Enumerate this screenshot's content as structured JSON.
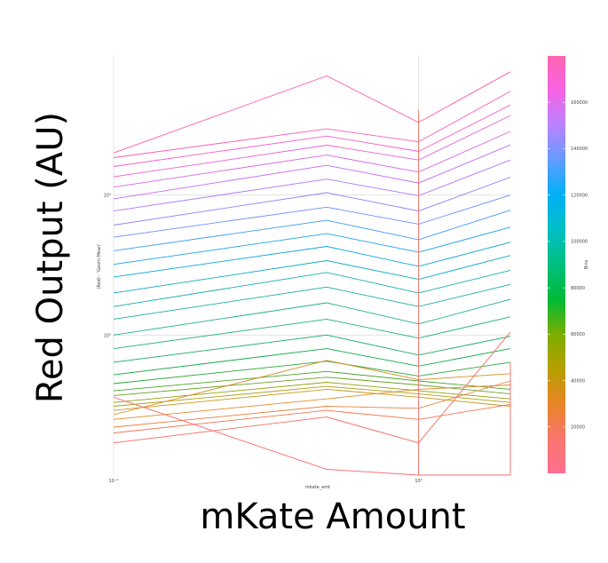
{
  "chart_data": {
    "type": "line",
    "title": "",
    "xlabel": "mKate Amount",
    "ylabel": "Red Output (AU)",
    "inner_xlabel": "mkate_amt",
    "inner_ylabel": "(Red) - 'Geom.Mean'",
    "x_scale": "log",
    "y_scale": "log",
    "x": [
      0.1,
      0.5,
      1,
      2
    ],
    "x_ticks": [
      {
        "value": 0.1,
        "label": "10⁻¹"
      },
      {
        "value": 1,
        "label": "10⁰"
      }
    ],
    "y_ticks": [
      {
        "value": 1000,
        "label": "10³"
      },
      {
        "value": 10000,
        "label": "10⁴"
      }
    ],
    "xlim": [
      0.1,
      2
    ],
    "ylim": [
      100,
      100000
    ],
    "grid": true,
    "legend": {
      "title": "Bins",
      "placement": "right",
      "type": "colorbar",
      "ticks": [
        20000,
        40000,
        60000,
        80000,
        100000,
        120000,
        140000,
        160000
      ],
      "range": [
        0,
        180000
      ],
      "colors": [
        "#ff6f91",
        "#f8766d",
        "#e88526",
        "#b79f00",
        "#7cae00",
        "#00ba38",
        "#00bf7d",
        "#00bfc4",
        "#00b0f6",
        "#619cff",
        "#b983ff",
        "#f564e3",
        "#ff64b0"
      ]
    },
    "series": [
      {
        "bin": 178000,
        "color": "#ff5ca8",
        "values": [
          20000,
          71000,
          33000,
          76000
        ]
      },
      {
        "bin": 172000,
        "color": "#fb5cb8",
        "values": [
          18500,
          29700,
          24000,
          55000
        ]
      },
      {
        "bin": 166000,
        "color": "#f35ec8",
        "values": [
          16000,
          26400,
          20500,
          44000
        ]
      },
      {
        "bin": 159000,
        "color": "#e860d8",
        "values": [
          13500,
          22700,
          17800,
          37000
        ]
      },
      {
        "bin": 152000,
        "color": "#d864e6",
        "values": [
          11400,
          19300,
          14600,
          28500
        ]
      },
      {
        "bin": 145000,
        "color": "#c56cf2",
        "values": [
          9400,
          16300,
          12200,
          22800
        ]
      },
      {
        "bin": 138000,
        "color": "#ae77f8",
        "values": [
          7700,
          13000,
          9900,
          17800
        ]
      },
      {
        "bin": 130000,
        "color": "#9283fb",
        "values": [
          6100,
          10400,
          7700,
          13400
        ]
      },
      {
        "bin": 122000,
        "color": "#6d8ffc",
        "values": [
          5000,
          8200,
          6200,
          10000
        ]
      },
      {
        "bin": 115000,
        "color": "#3f9af6",
        "values": [
          4000,
          6600,
          4800,
          7800
        ]
      },
      {
        "bin": 108000,
        "color": "#1aa3e8",
        "values": [
          3200,
          5300,
          3900,
          5900
        ]
      },
      {
        "bin": 101000,
        "color": "#0aa8d6",
        "values": [
          2600,
          4300,
          3100,
          4600
        ]
      },
      {
        "bin": 94000,
        "color": "#0dabc2",
        "values": [
          2000,
          3400,
          2500,
          3700
        ]
      },
      {
        "bin": 87000,
        "color": "#14adb0",
        "values": [
          1600,
          2800,
          2000,
          2900
        ]
      },
      {
        "bin": 80000,
        "color": "#1aae9e",
        "values": [
          1300,
          2200,
          1600,
          2300
        ]
      },
      {
        "bin": 73000,
        "color": "#1faf8c",
        "values": [
          1000,
          1700,
          1200,
          1800
        ]
      },
      {
        "bin": 66000,
        "color": "#20ae78",
        "values": [
          800,
          1300,
          950,
          1350
        ]
      },
      {
        "bin": 62000,
        "color": "#16ab60",
        "values": [
          640,
          1000,
          720,
          980
        ]
      },
      {
        "bin": 58000,
        "color": "#10a846",
        "values": [
          520,
          800,
          600,
          800
        ]
      },
      {
        "bin": 54000,
        "color": "#28a83a",
        "values": [
          450,
          650,
          510,
          640
        ]
      },
      {
        "bin": 50000,
        "color": "#4aa52c",
        "values": [
          400,
          550,
          470,
          410
        ]
      },
      {
        "bin": 46000,
        "color": "#6aa220",
        "values": [
          370,
          500,
          440,
          380
        ]
      },
      {
        "bin": 40000,
        "color": "#8fa20e",
        "values": [
          330,
          460,
          400,
          350
        ]
      },
      {
        "bin": 34000,
        "color": "#b09e10",
        "values": [
          310,
          430,
          380,
          330
        ]
      },
      {
        "bin": 28000,
        "color": "#c8951a",
        "values": [
          290,
          410,
          360,
          310
        ]
      },
      {
        "bin": 22000,
        "color": "#d98e22",
        "values": [
          270,
          660,
          480,
          530
        ]
      },
      {
        "bin": 16000,
        "color": "#e38a2a",
        "values": [
          250,
          350,
          410,
          440
        ]
      },
      {
        "bin": 10000,
        "color": "#ea7f3a",
        "values": [
          220,
          310,
          300,
          470
        ]
      },
      {
        "bin": 6000,
        "color": "#f27450",
        "values": [
          200,
          290,
          250,
          320
        ]
      },
      {
        "bin": 3000,
        "color": "#f66b62",
        "values": [
          170,
          260,
          170,
          1050
        ]
      },
      {
        "bin": 1000,
        "color": "#f86a72",
        "values": [
          360,
          110,
          100,
          100
        ]
      }
    ]
  }
}
